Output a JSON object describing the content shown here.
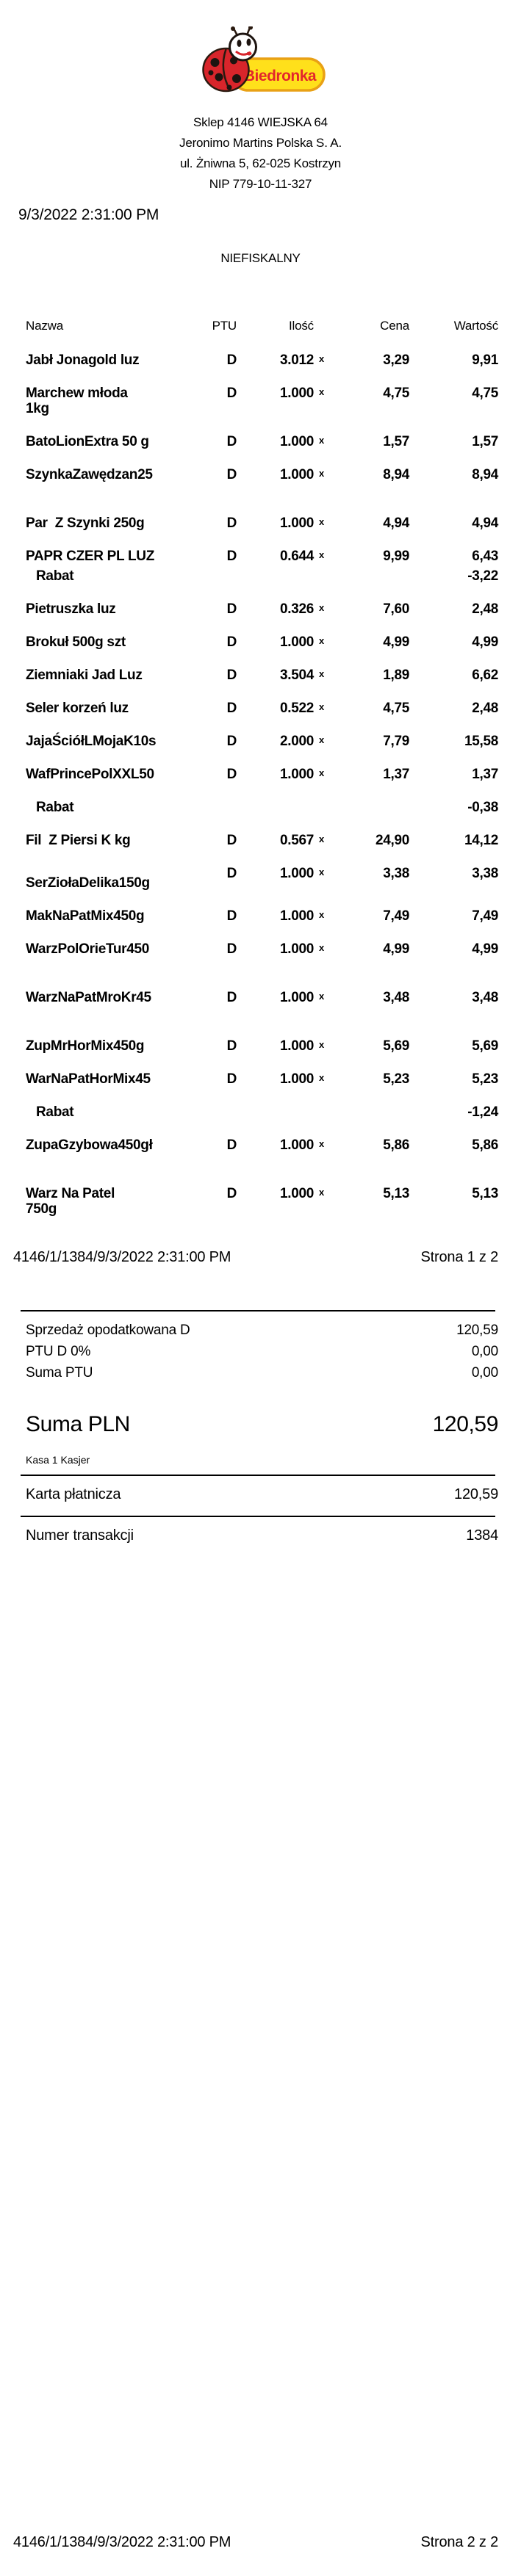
{
  "store": {
    "brand": "Biedronka",
    "address_lines": [
      "Sklep 4146 WIEJSKA 64",
      "Jeronimo Martins Polska S. A.",
      "ul. Żniwna 5, 62-025 Kostrzyn",
      "NIP 779-10-11-327"
    ]
  },
  "receipt": {
    "datetime": "9/3/2022 2:31:00 PM",
    "fiscal_label": "NIEFISKALNY",
    "columns": {
      "name": "Nazwa",
      "ptu": "PTU",
      "qty": "Ilość",
      "price": "Cena",
      "value": "Wartość"
    },
    "multiply_sign": "x",
    "rows": [
      {
        "type": "item",
        "name_lines": [
          "Jabł Jonagold luz"
        ],
        "ptu": "D",
        "qty": "3.012",
        "price": "3,29",
        "value": "9,91"
      },
      {
        "type": "item",
        "name_lines": [
          "Marchew młoda",
          "1kg"
        ],
        "ptu": "D",
        "qty": "1.000",
        "price": "4,75",
        "value": "4,75"
      },
      {
        "type": "item",
        "name_lines": [
          "BatoLionExtra 50 g"
        ],
        "ptu": "D",
        "qty": "1.000",
        "price": "1,57",
        "value": "1,57"
      },
      {
        "type": "item",
        "name_lines": [
          "SzynkaZawędzan25"
        ],
        "ptu": "D",
        "qty": "1.000",
        "price": "8,94",
        "value": "8,94"
      },
      {
        "type": "item",
        "gap_before": true,
        "name_lines": [
          "Par  Z Szynki 250g"
        ],
        "ptu": "D",
        "qty": "1.000",
        "price": "4,94",
        "value": "4,94"
      },
      {
        "type": "item",
        "name_lines": [
          "PAPR CZER PL LUZ"
        ],
        "ptu": "D",
        "qty": "0.644",
        "price": "9,99",
        "value": "6,43"
      },
      {
        "type": "rabat",
        "tight": true,
        "label": "Rabat",
        "value": "-3,22"
      },
      {
        "type": "item",
        "name_lines": [
          "Pietruszka luz"
        ],
        "ptu": "D",
        "qty": "0.326",
        "price": "7,60",
        "value": "2,48"
      },
      {
        "type": "item",
        "name_lines": [
          "Brokuł 500g szt"
        ],
        "ptu": "D",
        "qty": "1.000",
        "price": "4,99",
        "value": "4,99"
      },
      {
        "type": "item",
        "name_lines": [
          "Ziemniaki Jad Luz"
        ],
        "ptu": "D",
        "qty": "3.504",
        "price": "1,89",
        "value": "6,62"
      },
      {
        "type": "item",
        "name_lines": [
          "Seler korzeń luz"
        ],
        "ptu": "D",
        "qty": "0.522",
        "price": "4,75",
        "value": "2,48"
      },
      {
        "type": "item",
        "name_lines": [
          "JajaŚciółLMojaK10s"
        ],
        "ptu": "D",
        "qty": "2.000",
        "price": "7,79",
        "value": "15,58"
      },
      {
        "type": "item",
        "name_lines": [
          "WafPrincePolXXL50"
        ],
        "ptu": "D",
        "qty": "1.000",
        "price": "1,37",
        "value": "1,37"
      },
      {
        "type": "rabat",
        "label": "Rabat",
        "value": "-0,38"
      },
      {
        "type": "item",
        "name_lines": [
          "Fil  Z Piersi K kg"
        ],
        "ptu": "D",
        "qty": "0.567",
        "price": "24,90",
        "value": "14,12"
      },
      {
        "type": "item",
        "offset_name": true,
        "name_lines": [
          "SerZiołaDelika150g"
        ],
        "ptu": "D",
        "qty": "1.000",
        "price": "3,38",
        "value": "3,38"
      },
      {
        "type": "item",
        "name_lines": [
          "MakNaPatMix450g"
        ],
        "ptu": "D",
        "qty": "1.000",
        "price": "7,49",
        "value": "7,49"
      },
      {
        "type": "item",
        "name_lines": [
          "WarzPolOrieTur450"
        ],
        "ptu": "D",
        "qty": "1.000",
        "price": "4,99",
        "value": "4,99"
      },
      {
        "type": "item",
        "gap_before": true,
        "name_lines": [
          "WarzNaPatMroKr45"
        ],
        "ptu": "D",
        "qty": "1.000",
        "price": "3,48",
        "value": "3,48"
      },
      {
        "type": "item",
        "gap_before": true,
        "name_lines": [
          "ZupMrHorMix450g"
        ],
        "ptu": "D",
        "qty": "1.000",
        "price": "5,69",
        "value": "5,69"
      },
      {
        "type": "item",
        "name_lines": [
          "WarNaPatHorMix45"
        ],
        "ptu": "D",
        "qty": "1.000",
        "price": "5,23",
        "value": "5,23"
      },
      {
        "type": "rabat",
        "label": "Rabat",
        "value": "-1,24"
      },
      {
        "type": "item",
        "name_lines": [
          "ZupaGzybowa450gł"
        ],
        "ptu": "D",
        "qty": "1.000",
        "price": "5,86",
        "value": "5,86"
      },
      {
        "type": "item",
        "gap_before": true,
        "name_lines": [
          "Warz Na Patel",
          "750g"
        ],
        "ptu": "D",
        "qty": "1.000",
        "price": "5,13",
        "value": "5,13"
      }
    ],
    "page1_footer": {
      "left": "4146/1/1384/9/3/2022 2:31:00 PM",
      "right": "Strona 1 z 2"
    },
    "summary_rows": [
      {
        "label": "Sprzedaż opodatkowana D",
        "value": "120,59"
      },
      {
        "label": "PTU D 0%",
        "value": "0,00"
      },
      {
        "label": "Suma PTU",
        "value": "0,00"
      }
    ],
    "total": {
      "label": "Suma PLN",
      "value": "120,59"
    },
    "cashier_line": "Kasa 1 Kasjer",
    "payment": {
      "label": "Karta płatnicza",
      "value": "120,59"
    },
    "transaction": {
      "label": "Numer transakcji",
      "value": "1384"
    },
    "page2_footer": {
      "left": "4146/1/1384/9/3/2022 2:31:00 PM",
      "right": "Strona 2 z 2"
    }
  },
  "colors": {
    "badge_yellow": "#FFE01B",
    "badge_border": "#E9A115",
    "brand_red": "#E3262C",
    "ladybug_red": "#D8252B",
    "outline_dark": "#2A1A10",
    "text": "#000000"
  }
}
